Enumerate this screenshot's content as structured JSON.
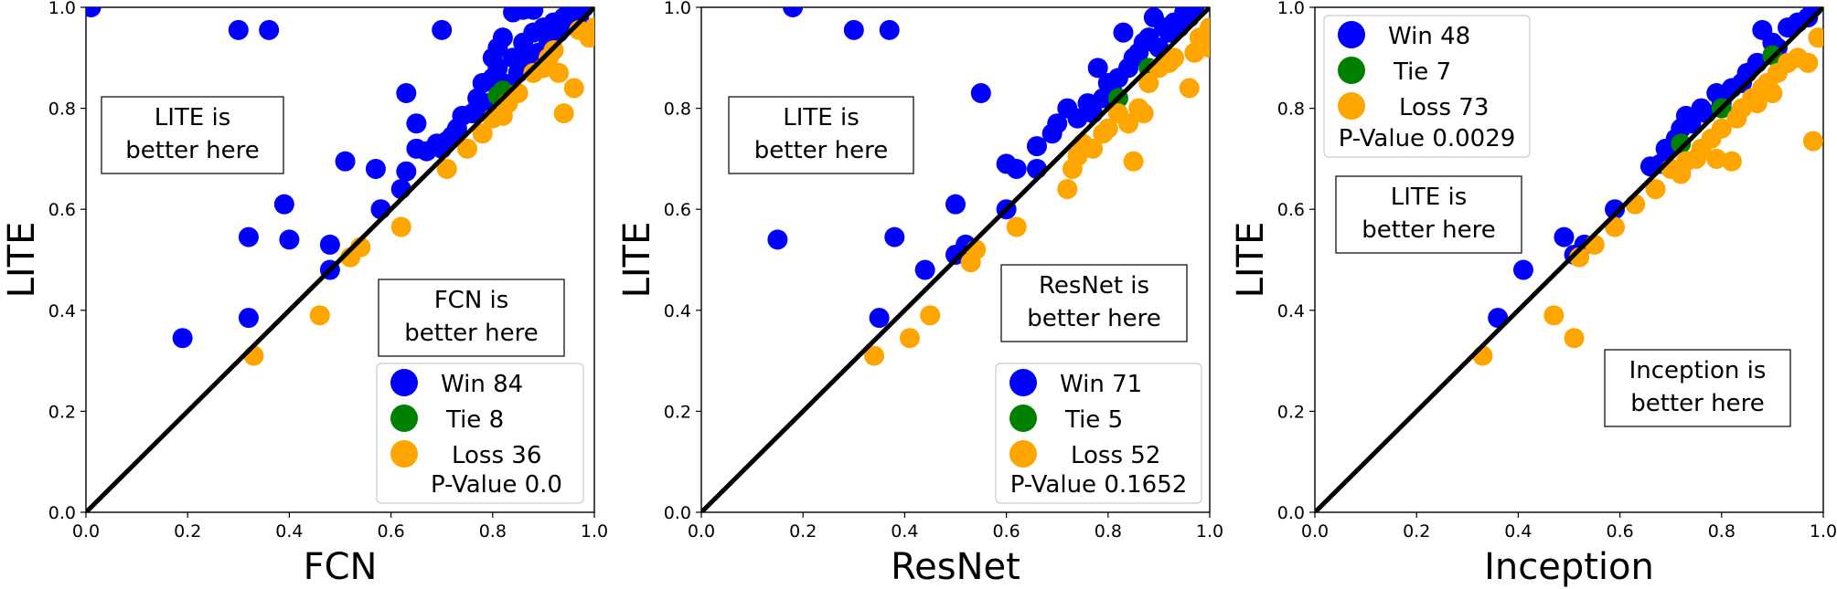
{
  "chart_data": [
    {
      "type": "scatter",
      "xlabel": "FCN",
      "ylabel": "LITE",
      "xlim": [
        0,
        1
      ],
      "ylim": [
        0,
        1
      ],
      "ticks": [
        0.0,
        0.2,
        0.4,
        0.6,
        0.8,
        1.0
      ],
      "tick_labels": [
        "0.0",
        "0.2",
        "0.4",
        "0.6",
        "0.8",
        "1.0"
      ],
      "grid": false,
      "legend_position": "bottom-right",
      "annotations": {
        "upper": [
          "LITE is",
          "better here"
        ],
        "lower": [
          "FCN is",
          "better here"
        ]
      },
      "legend": {
        "entries": [
          {
            "label": "Win 84",
            "color": "#0000ff"
          },
          {
            "label": "Tie 8",
            "color": "#008000"
          },
          {
            "label": "Loss 36",
            "color": "#ffa500"
          }
        ],
        "pvalue": "P-Value 0.0"
      },
      "series": [
        {
          "key": "win",
          "color": "#0000ff",
          "points": [
            [
              0.01,
              1.0
            ],
            [
              0.3,
              0.955
            ],
            [
              0.36,
              0.955
            ],
            [
              0.7,
              0.955
            ],
            [
              0.86,
              0.995
            ],
            [
              0.88,
              0.995
            ],
            [
              0.84,
              0.99
            ],
            [
              0.19,
              0.345
            ],
            [
              0.32,
              0.385
            ],
            [
              0.32,
              0.545
            ],
            [
              0.39,
              0.61
            ],
            [
              0.4,
              0.54
            ],
            [
              0.48,
              0.53
            ],
            [
              0.48,
              0.48
            ],
            [
              0.51,
              0.695
            ],
            [
              0.57,
              0.68
            ],
            [
              0.58,
              0.6
            ],
            [
              0.63,
              0.83
            ],
            [
              0.63,
              0.675
            ],
            [
              0.62,
              0.64
            ],
            [
              0.65,
              0.77
            ],
            [
              0.65,
              0.72
            ],
            [
              0.67,
              0.715
            ],
            [
              0.69,
              0.73
            ],
            [
              0.7,
              0.72
            ],
            [
              0.71,
              0.735
            ],
            [
              0.72,
              0.745
            ],
            [
              0.73,
              0.76
            ],
            [
              0.74,
              0.785
            ],
            [
              0.76,
              0.79
            ],
            [
              0.77,
              0.8
            ],
            [
              0.77,
              0.82
            ],
            [
              0.78,
              0.85
            ],
            [
              0.79,
              0.81
            ],
            [
              0.8,
              0.9
            ],
            [
              0.8,
              0.86
            ],
            [
              0.81,
              0.92
            ],
            [
              0.81,
              0.88
            ],
            [
              0.82,
              0.85
            ],
            [
              0.82,
              0.94
            ],
            [
              0.83,
              0.84
            ],
            [
              0.84,
              0.9
            ],
            [
              0.85,
              0.87
            ],
            [
              0.86,
              0.93
            ],
            [
              0.87,
              0.9
            ],
            [
              0.88,
              0.95
            ],
            [
              0.89,
              0.91
            ],
            [
              0.9,
              0.96
            ],
            [
              0.91,
              0.93
            ],
            [
              0.92,
              0.97
            ],
            [
              0.93,
              0.95
            ],
            [
              0.94,
              0.98
            ],
            [
              0.95,
              0.97
            ],
            [
              0.96,
              0.99
            ],
            [
              0.97,
              0.98
            ],
            [
              0.98,
              1.0
            ]
          ]
        },
        {
          "key": "tie",
          "color": "#008000",
          "points": [
            [
              0.81,
              0.825
            ],
            [
              0.82,
              0.835
            ]
          ]
        },
        {
          "key": "loss",
          "color": "#ffa500",
          "points": [
            [
              0.33,
              0.31
            ],
            [
              0.46,
              0.39
            ],
            [
              0.52,
              0.505
            ],
            [
              0.54,
              0.525
            ],
            [
              0.62,
              0.565
            ],
            [
              0.71,
              0.68
            ],
            [
              0.75,
              0.72
            ],
            [
              0.78,
              0.75
            ],
            [
              0.8,
              0.78
            ],
            [
              0.82,
              0.785
            ],
            [
              0.83,
              0.81
            ],
            [
              0.85,
              0.83
            ],
            [
              0.88,
              0.87
            ],
            [
              0.9,
              0.88
            ],
            [
              0.91,
              0.9
            ],
            [
              0.92,
              0.915
            ],
            [
              0.93,
              0.87
            ],
            [
              0.94,
              0.79
            ],
            [
              0.96,
              0.84
            ],
            [
              0.97,
              0.955
            ],
            [
              0.99,
              0.94
            ],
            [
              1.0,
              0.96
            ]
          ]
        }
      ]
    },
    {
      "type": "scatter",
      "xlabel": "ResNet",
      "ylabel": "LITE",
      "xlim": [
        0,
        1
      ],
      "ylim": [
        0,
        1
      ],
      "ticks": [
        0.0,
        0.2,
        0.4,
        0.6,
        0.8,
        1.0
      ],
      "tick_labels": [
        "0.0",
        "0.2",
        "0.4",
        "0.6",
        "0.8",
        "1.0"
      ],
      "grid": false,
      "legend_position": "bottom-right",
      "annotations": {
        "upper": [
          "LITE is",
          "better here"
        ],
        "lower": [
          "ResNet is",
          "better here"
        ]
      },
      "legend": {
        "entries": [
          {
            "label": "Win 71",
            "color": "#0000ff"
          },
          {
            "label": "Tie 5",
            "color": "#008000"
          },
          {
            "label": "Loss 52",
            "color": "#ffa500"
          }
        ],
        "pvalue": "P-Value 0.1652"
      },
      "series": [
        {
          "key": "win",
          "color": "#0000ff",
          "points": [
            [
              0.18,
              1.0
            ],
            [
              0.3,
              0.955
            ],
            [
              0.37,
              0.955
            ],
            [
              0.15,
              0.54
            ],
            [
              0.35,
              0.385
            ],
            [
              0.38,
              0.545
            ],
            [
              0.44,
              0.48
            ],
            [
              0.5,
              0.61
            ],
            [
              0.5,
              0.51
            ],
            [
              0.52,
              0.53
            ],
            [
              0.55,
              0.83
            ],
            [
              0.6,
              0.6
            ],
            [
              0.6,
              0.69
            ],
            [
              0.62,
              0.68
            ],
            [
              0.66,
              0.725
            ],
            [
              0.66,
              0.68
            ],
            [
              0.69,
              0.75
            ],
            [
              0.7,
              0.77
            ],
            [
              0.72,
              0.8
            ],
            [
              0.74,
              0.78
            ],
            [
              0.76,
              0.81
            ],
            [
              0.77,
              0.79
            ],
            [
              0.78,
              0.88
            ],
            [
              0.79,
              0.82
            ],
            [
              0.8,
              0.85
            ],
            [
              0.81,
              0.83
            ],
            [
              0.82,
              0.86
            ],
            [
              0.83,
              0.95
            ],
            [
              0.84,
              0.88
            ],
            [
              0.85,
              0.9
            ],
            [
              0.86,
              0.91
            ],
            [
              0.87,
              0.93
            ],
            [
              0.88,
              0.94
            ],
            [
              0.89,
              0.98
            ],
            [
              0.9,
              0.92
            ],
            [
              0.91,
              0.96
            ],
            [
              0.92,
              0.95
            ],
            [
              0.93,
              0.97
            ],
            [
              0.94,
              0.96
            ],
            [
              0.95,
              0.99
            ],
            [
              0.96,
              0.98
            ],
            [
              0.97,
              1.0
            ]
          ]
        },
        {
          "key": "tie",
          "color": "#008000",
          "points": [
            [
              0.82,
              0.82
            ],
            [
              0.88,
              0.88
            ]
          ]
        },
        {
          "key": "loss",
          "color": "#ffa500",
          "points": [
            [
              0.34,
              0.31
            ],
            [
              0.41,
              0.345
            ],
            [
              0.45,
              0.39
            ],
            [
              0.53,
              0.495
            ],
            [
              0.54,
              0.52
            ],
            [
              0.62,
              0.565
            ],
            [
              0.72,
              0.64
            ],
            [
              0.73,
              0.68
            ],
            [
              0.74,
              0.705
            ],
            [
              0.75,
              0.73
            ],
            [
              0.77,
              0.72
            ],
            [
              0.79,
              0.75
            ],
            [
              0.8,
              0.76
            ],
            [
              0.82,
              0.79
            ],
            [
              0.84,
              0.77
            ],
            [
              0.85,
              0.695
            ],
            [
              0.86,
              0.8
            ],
            [
              0.87,
              0.79
            ],
            [
              0.88,
              0.85
            ],
            [
              0.9,
              0.88
            ],
            [
              0.92,
              0.89
            ],
            [
              0.93,
              0.9
            ],
            [
              0.96,
              0.84
            ],
            [
              0.97,
              0.91
            ],
            [
              0.98,
              0.94
            ],
            [
              1.0,
              0.92
            ],
            [
              1.0,
              0.96
            ]
          ]
        }
      ]
    },
    {
      "type": "scatter",
      "xlabel": "Inception",
      "ylabel": "LITE",
      "xlim": [
        0,
        1
      ],
      "ylim": [
        0,
        1
      ],
      "ticks": [
        0.0,
        0.2,
        0.4,
        0.6,
        0.8,
        1.0
      ],
      "tick_labels": [
        "0.0",
        "0.2",
        "0.4",
        "0.6",
        "0.8",
        "1.0"
      ],
      "grid": false,
      "legend_position": "top-left",
      "annotations": {
        "upper": [
          "LITE is",
          "better here"
        ],
        "lower": [
          "Inception is",
          "better here"
        ]
      },
      "legend": {
        "entries": [
          {
            "label": "Win 48",
            "color": "#0000ff"
          },
          {
            "label": "Tie 7",
            "color": "#008000"
          },
          {
            "label": "Loss 73",
            "color": "#ffa500"
          }
        ],
        "pvalue": "P-Value 0.0029"
      },
      "series": [
        {
          "key": "win",
          "color": "#0000ff",
          "points": [
            [
              0.36,
              0.385
            ],
            [
              0.41,
              0.48
            ],
            [
              0.49,
              0.545
            ],
            [
              0.51,
              0.51
            ],
            [
              0.53,
              0.53
            ],
            [
              0.59,
              0.6
            ],
            [
              0.66,
              0.685
            ],
            [
              0.68,
              0.69
            ],
            [
              0.69,
              0.72
            ],
            [
              0.71,
              0.74
            ],
            [
              0.72,
              0.76
            ],
            [
              0.73,
              0.785
            ],
            [
              0.74,
              0.77
            ],
            [
              0.76,
              0.8
            ],
            [
              0.77,
              0.79
            ],
            [
              0.79,
              0.83
            ],
            [
              0.8,
              0.81
            ],
            [
              0.82,
              0.84
            ],
            [
              0.84,
              0.85
            ],
            [
              0.85,
              0.87
            ],
            [
              0.87,
              0.89
            ],
            [
              0.88,
              0.955
            ],
            [
              0.9,
              0.93
            ],
            [
              0.91,
              0.92
            ],
            [
              0.93,
              0.96
            ],
            [
              0.95,
              0.97
            ],
            [
              0.97,
              0.98
            ],
            [
              0.98,
              1.0
            ]
          ]
        },
        {
          "key": "tie",
          "color": "#008000",
          "points": [
            [
              0.72,
              0.73
            ],
            [
              0.8,
              0.8
            ],
            [
              0.9,
              0.905
            ]
          ]
        },
        {
          "key": "loss",
          "color": "#ffa500",
          "points": [
            [
              0.33,
              0.31
            ],
            [
              0.47,
              0.39
            ],
            [
              0.51,
              0.345
            ],
            [
              0.52,
              0.505
            ],
            [
              0.55,
              0.53
            ],
            [
              0.59,
              0.565
            ],
            [
              0.63,
              0.61
            ],
            [
              0.67,
              0.64
            ],
            [
              0.7,
              0.68
            ],
            [
              0.72,
              0.67
            ],
            [
              0.73,
              0.695
            ],
            [
              0.75,
              0.7
            ],
            [
              0.76,
              0.72
            ],
            [
              0.78,
              0.74
            ],
            [
              0.79,
              0.7
            ],
            [
              0.8,
              0.76
            ],
            [
              0.82,
              0.695
            ],
            [
              0.83,
              0.78
            ],
            [
              0.84,
              0.8
            ],
            [
              0.86,
              0.82
            ],
            [
              0.87,
              0.81
            ],
            [
              0.88,
              0.84
            ],
            [
              0.89,
              0.85
            ],
            [
              0.9,
              0.83
            ],
            [
              0.91,
              0.87
            ],
            [
              0.93,
              0.89
            ],
            [
              0.95,
              0.9
            ],
            [
              0.97,
              0.89
            ],
            [
              0.98,
              0.735
            ],
            [
              0.99,
              0.94
            ]
          ]
        }
      ]
    }
  ]
}
